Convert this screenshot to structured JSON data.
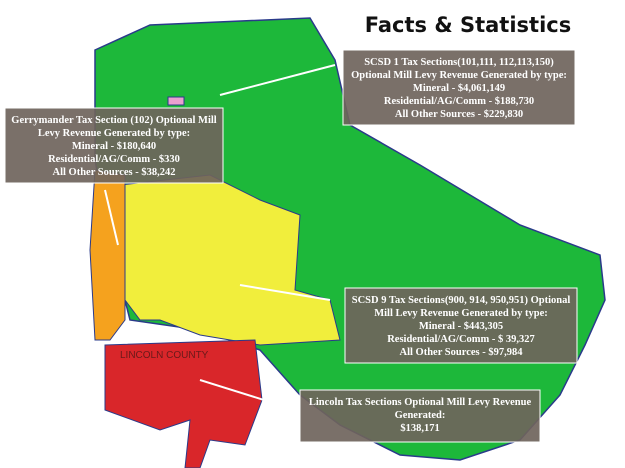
{
  "title": "Facts & Statistics",
  "map_label": "LINCOLN COUNTY",
  "callouts": [
    {
      "lines": [
        "SCSD 1 Tax Sections(101,111, 112,113,150)",
        "Optional Mill Levy Revenue Generated by type:",
        "Mineral - $4,061,149",
        "Residential/AG/Comm - $188,730",
        "All Other Sources - $229,830"
      ]
    },
    {
      "lines": [
        "Gerrymander Tax Section (102) Optional Mill",
        "Levy Revenue Generated by type:",
        "Mineral - $180,640",
        "Residential/AG/Comm - $330",
        "All Other Sources - $38,242"
      ]
    },
    {
      "lines": [
        "SCSD 9 Tax Sections(900, 914, 950,951) Optional",
        "Mill Levy Revenue Generated by type:",
        "Mineral - $443,305",
        "Residential/AG/Comm - $ 39,327",
        "All Other Sources - $97,984"
      ]
    },
    {
      "lines": [
        "Lincoln Tax Sections Optional Mill Levy Revenue",
        "Generated:",
        "$138,171"
      ]
    }
  ]
}
